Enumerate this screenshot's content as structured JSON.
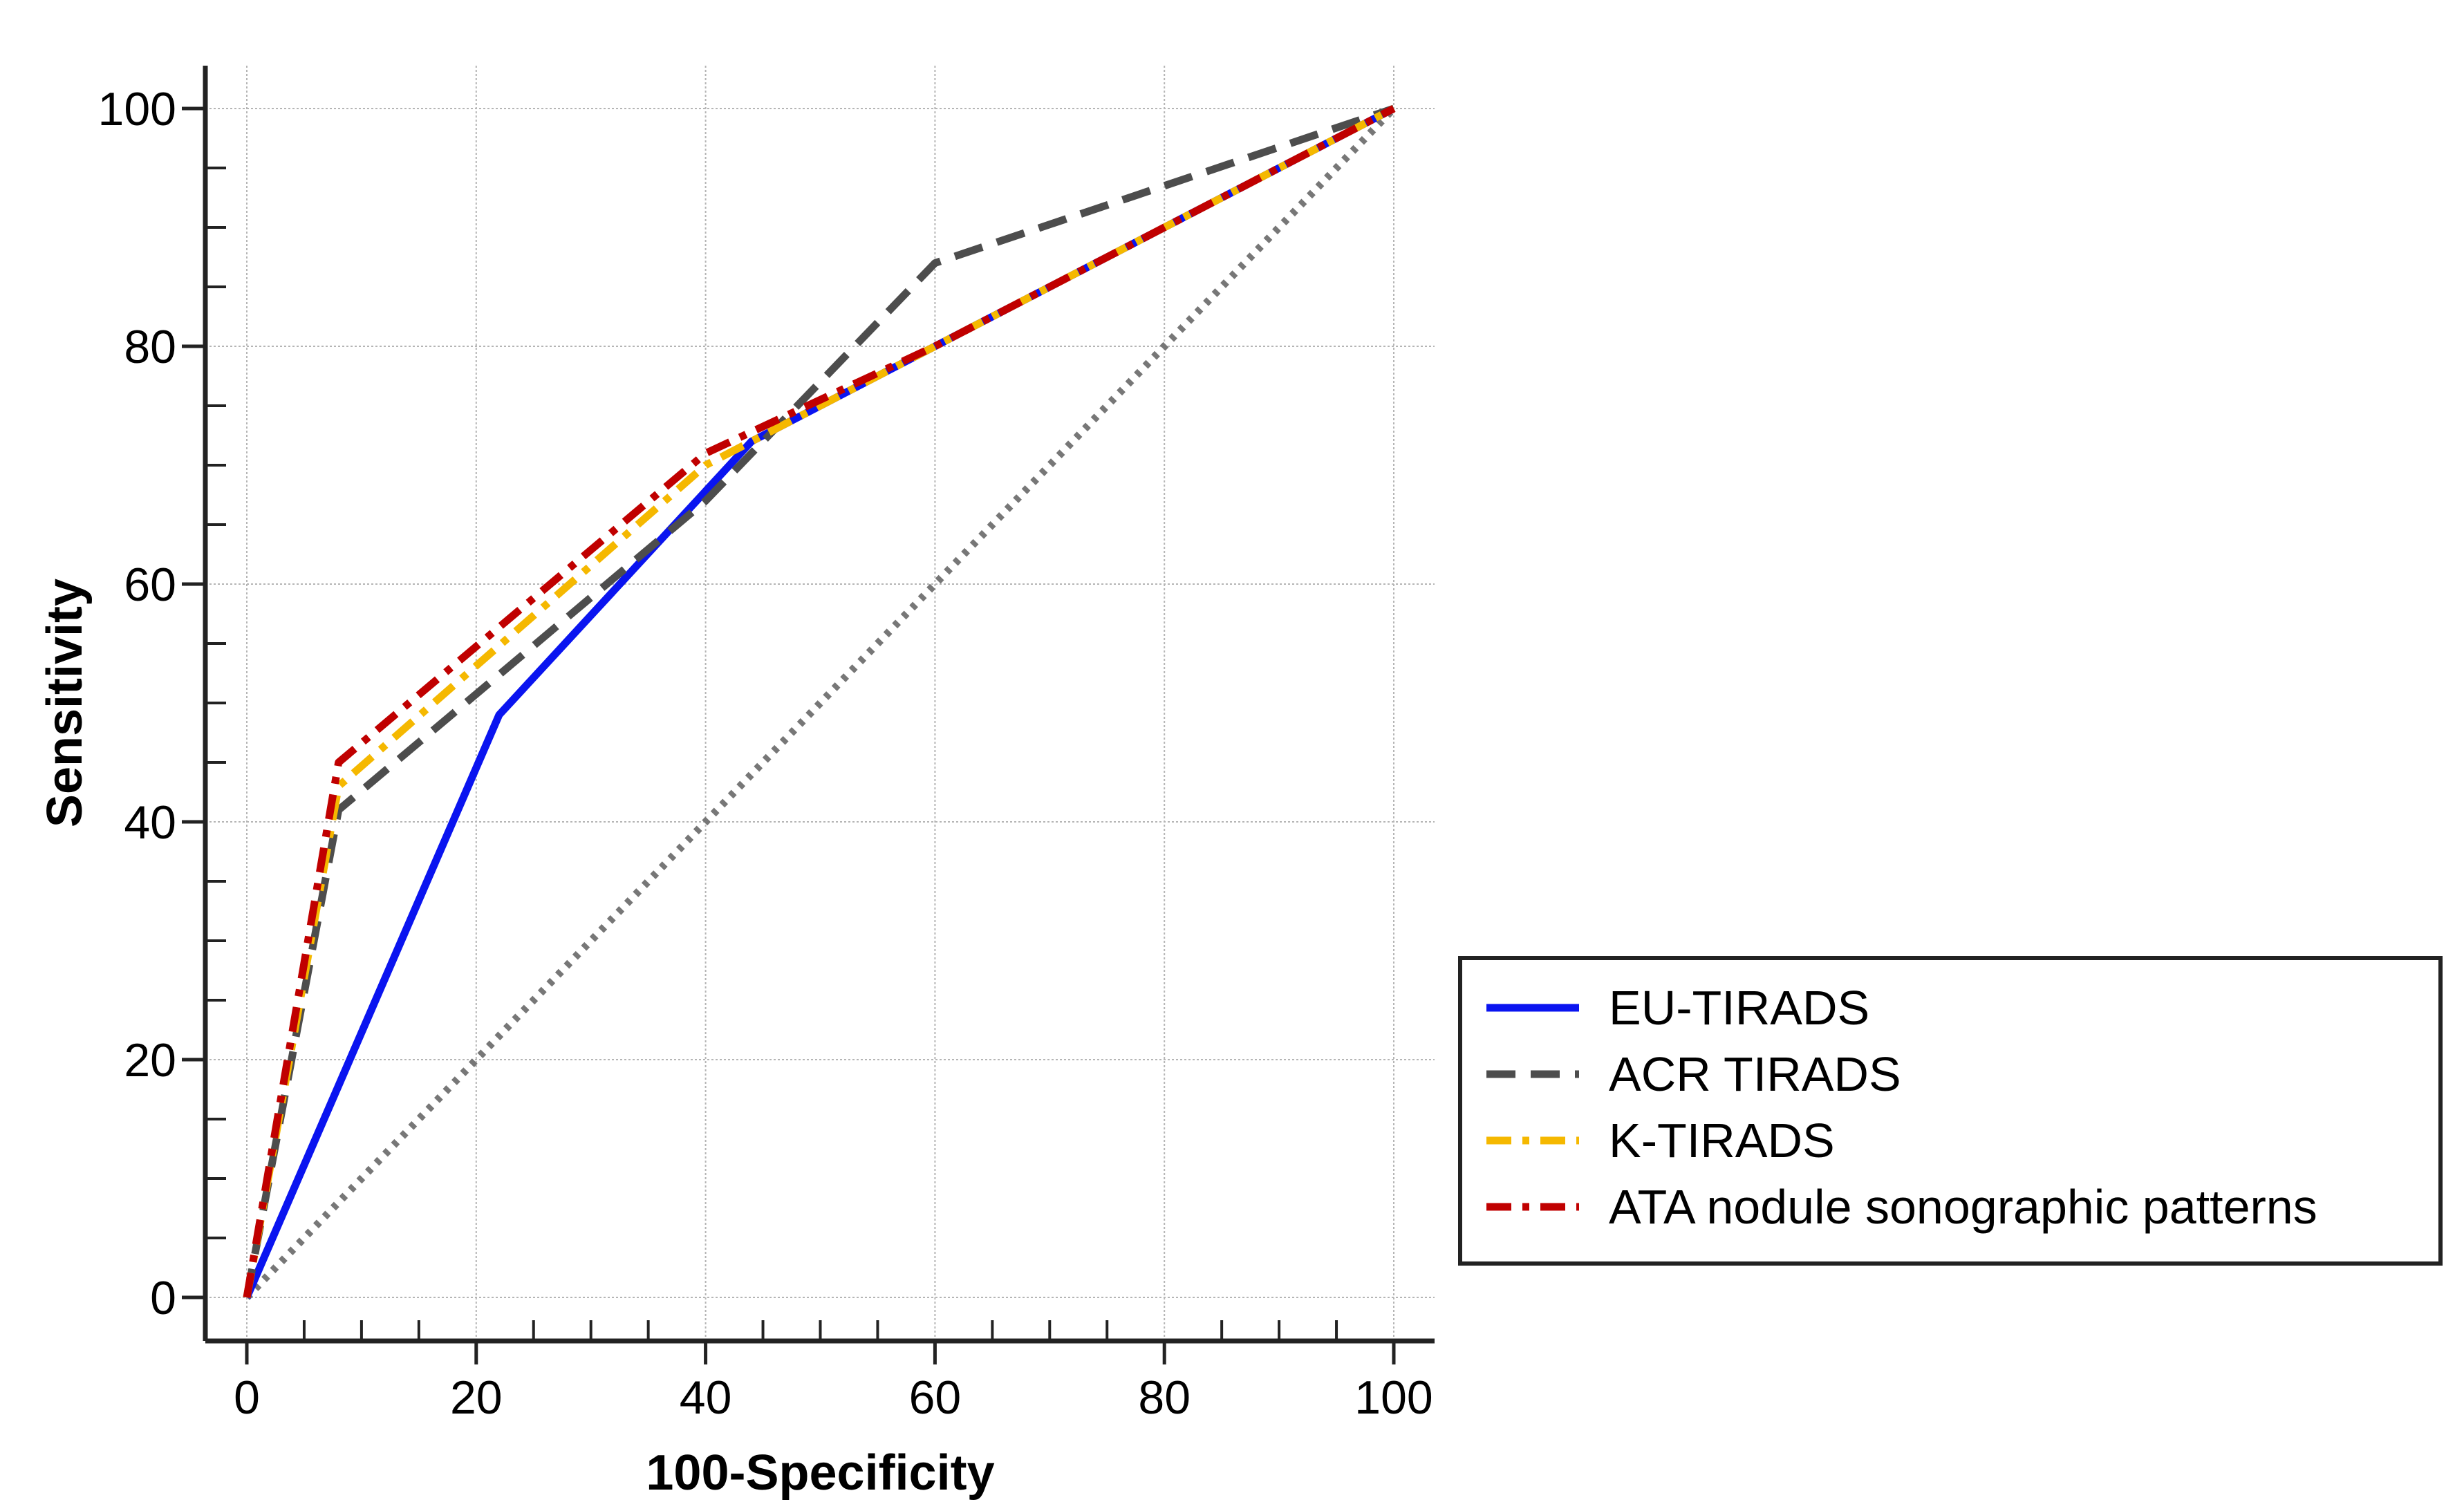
{
  "chart_data": {
    "type": "line",
    "title": "",
    "xlabel": "100-Specificity",
    "ylabel": "Sensitivity",
    "xlim": [
      0,
      100
    ],
    "ylim": [
      0,
      100
    ],
    "xticks": [
      "0",
      "20",
      "40",
      "60",
      "80",
      "100"
    ],
    "yticks": [
      "0",
      "20",
      "40",
      "60",
      "80",
      "100"
    ],
    "grid": true,
    "legend_position": "bottom-right",
    "reference_line": {
      "name": "chance",
      "x": [
        0,
        100
      ],
      "y": [
        0,
        100
      ],
      "color": "#777777",
      "style": "dotted"
    },
    "series": [
      {
        "name": "EU-TIRADS",
        "color": "#0a14f0",
        "style": "solid",
        "x": [
          0,
          22,
          44,
          60,
          100
        ],
        "y": [
          0,
          49,
          72,
          80,
          100
        ]
      },
      {
        "name": "ACR TIRADS",
        "color": "#4d4d4d",
        "style": "dashed",
        "x": [
          0,
          8,
          40,
          60,
          100
        ],
        "y": [
          0,
          41,
          67,
          87,
          100
        ]
      },
      {
        "name": "K-TIRADS",
        "color": "#f5b800",
        "style": "dashdot",
        "x": [
          0,
          8,
          40,
          60,
          100
        ],
        "y": [
          0,
          43,
          70,
          80,
          100
        ]
      },
      {
        "name": "ATA nodule sonographic patterns",
        "color": "#c00000",
        "style": "dashdot",
        "x": [
          0,
          8,
          40,
          60,
          100
        ],
        "y": [
          0,
          45,
          71,
          80,
          100
        ]
      }
    ]
  }
}
